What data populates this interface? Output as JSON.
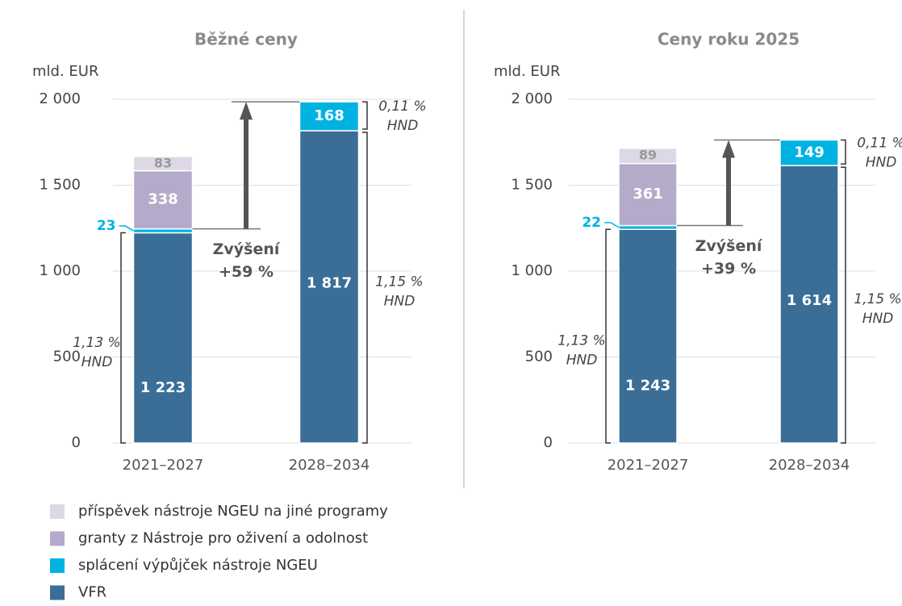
{
  "chart_data": [
    {
      "type": "bar",
      "stacked": true,
      "title": "Běžné ceny",
      "y_label": "mld. EUR",
      "categories": [
        "2021–2027",
        "2028–2034"
      ],
      "series": [
        {
          "name": "VFR",
          "color": "#3a6e97",
          "values": [
            1223,
            1817
          ],
          "value_labels": [
            "1 223",
            "1 817"
          ]
        },
        {
          "name": "splácení výpůjček nástroje NGEU",
          "color": "#00b2e2",
          "values": [
            23,
            168
          ]
        },
        {
          "name": "granty z Nástroje pro oživení a odolnost",
          "color": "#b4abca",
          "values": [
            338,
            null
          ]
        },
        {
          "name": "příspěvek nástroje NGEU na jiné programy",
          "color": "#dcd8e5",
          "values": [
            83,
            null
          ]
        }
      ],
      "ylim": [
        0,
        2000
      ],
      "yticks": [
        0,
        500,
        {
          "value": 1000,
          "label": "1 000"
        },
        {
          "value": 1500,
          "label": "1 500"
        },
        {
          "value": 2000,
          "label": "2 000"
        }
      ],
      "grid": true,
      "increase_label": [
        "Zvýšení",
        "+59 %"
      ],
      "bracket_labels": [
        [
          "1,13 %",
          "HND"
        ],
        [
          "1,15 %",
          "HND"
        ],
        [
          "0,11 %",
          "HND"
        ]
      ]
    },
    {
      "type": "bar",
      "stacked": true,
      "title": "Ceny roku 2025",
      "y_label": "mld. EUR",
      "categories": [
        "2021–2027",
        "2028–2034"
      ],
      "series": [
        {
          "name": "VFR",
          "color": "#3a6e97",
          "values": [
            1243,
            1614
          ],
          "value_labels": [
            "1 243",
            "1 614"
          ]
        },
        {
          "name": "splácení výpůjček nástroje NGEU",
          "color": "#00b2e2",
          "values": [
            22,
            149
          ]
        },
        {
          "name": "granty z Nástroje pro oživení a odolnost",
          "color": "#b4abca",
          "values": [
            361,
            null
          ]
        },
        {
          "name": "příspěvek nástroje NGEU na jiné programy",
          "color": "#dcd8e5",
          "values": [
            89,
            null
          ]
        }
      ],
      "ylim": [
        0,
        2000
      ],
      "yticks": [
        0,
        500,
        {
          "value": 1000,
          "label": "1 000"
        },
        {
          "value": 1500,
          "label": "1 500"
        },
        {
          "value": 2000,
          "label": "2 000"
        }
      ],
      "grid": true,
      "increase_label": [
        "Zvýšení",
        "+39 %"
      ],
      "bracket_labels": [
        [
          "1,13 %",
          "HND"
        ],
        [
          "1,15 %",
          "HND"
        ],
        [
          "0,11 %",
          "HND"
        ]
      ]
    }
  ]
}
